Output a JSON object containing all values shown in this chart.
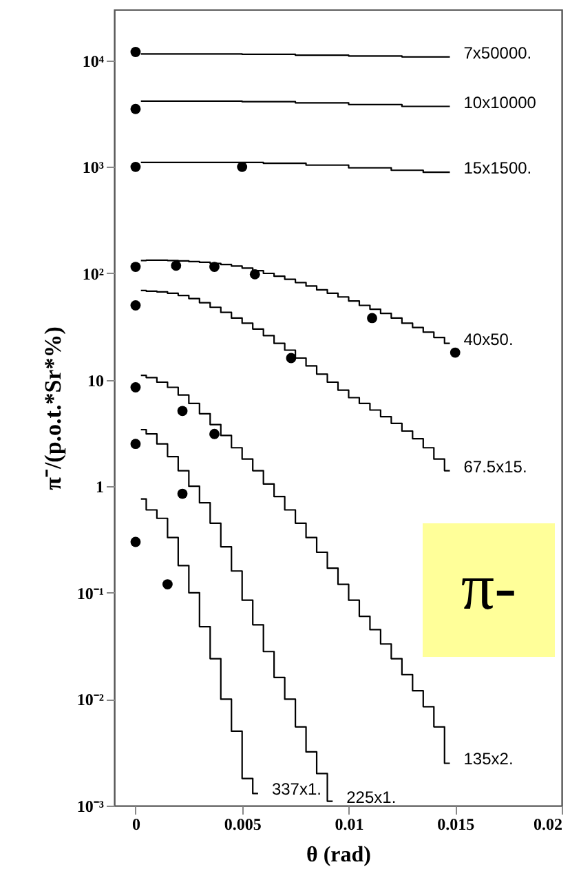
{
  "chart_data": {
    "type": "step",
    "xlabel": "θ (rad)",
    "ylabel": "π⁻/(p.o.t.*Sr*%)",
    "xlim": [
      -0.001,
      0.02
    ],
    "xticks": [
      0,
      0.005,
      0.01,
      0.015,
      0.02
    ],
    "ylim": [
      0.001,
      30000
    ],
    "yticks": [
      {
        "value": 0.001,
        "label": "10⁻³"
      },
      {
        "value": 0.01,
        "label": "10⁻²"
      },
      {
        "value": 0.1,
        "label": "10⁻¹"
      },
      1,
      10,
      {
        "value": 100,
        "label": "10²"
      },
      {
        "value": 1000,
        "label": "10³"
      },
      {
        "value": 10000,
        "label": "10⁴"
      }
    ],
    "log": true,
    "grid": false,
    "line_style": "solid",
    "annotations": [
      "π-"
    ],
    "series": [
      {
        "name": "7x50000.",
        "color": "#000000",
        "x": [
          0.00025,
          0.00075,
          0.00125,
          0.00175,
          0.00225,
          0.00275,
          0.00325,
          0.00375,
          0.00425,
          0.00475,
          0.00525,
          0.00575,
          0.00625,
          0.00675,
          0.00725,
          0.00775,
          0.00825,
          0.00875,
          0.00925,
          0.00975,
          0.01025,
          0.01075,
          0.01125,
          0.01175,
          0.01225,
          0.01275,
          0.01325,
          0.01375,
          0.01425,
          0.01475
        ],
        "values": [
          11500,
          11500,
          11500,
          11500,
          11500,
          11500,
          11500,
          11500,
          11500,
          11500,
          11400,
          11400,
          11400,
          11400,
          11400,
          11200,
          11200,
          11200,
          11200,
          11200,
          11000,
          11000,
          11000,
          11000,
          11000,
          10800,
          10800,
          10800,
          10800,
          10800
        ]
      },
      {
        "name": "10x10000",
        "color": "#000000",
        "x": [
          0.00025,
          0.00075,
          0.00125,
          0.00175,
          0.00225,
          0.00275,
          0.00325,
          0.00375,
          0.00425,
          0.00475,
          0.00525,
          0.00575,
          0.00625,
          0.00675,
          0.00725,
          0.00775,
          0.00825,
          0.00875,
          0.00925,
          0.00975,
          0.01025,
          0.01075,
          0.01125,
          0.01175,
          0.01225,
          0.01275,
          0.01325,
          0.01375,
          0.01425,
          0.01475
        ],
        "values": [
          4150,
          4150,
          4150,
          4150,
          4150,
          4150,
          4150,
          4150,
          4150,
          4150,
          4100,
          4100,
          4100,
          4100,
          4100,
          4000,
          4000,
          4000,
          4000,
          4000,
          3850,
          3850,
          3850,
          3850,
          3850,
          3700,
          3700,
          3700,
          3700,
          3700
        ]
      },
      {
        "name": "15x1500.",
        "color": "#000000",
        "x": [
          0.00025,
          0.00075,
          0.00125,
          0.00175,
          0.00225,
          0.00275,
          0.00325,
          0.00375,
          0.00425,
          0.00475,
          0.00525,
          0.00575,
          0.00625,
          0.00675,
          0.00725,
          0.00775,
          0.00825,
          0.00875,
          0.00925,
          0.00975,
          0.01025,
          0.01075,
          0.01125,
          0.01175,
          0.01225,
          0.01275,
          0.01325,
          0.01375,
          0.01425,
          0.01475
        ],
        "values": [
          1100,
          1100,
          1100,
          1100,
          1100,
          1100,
          1100,
          1100,
          1100,
          1100,
          1100,
          1100,
          1080,
          1080,
          1080,
          1080,
          1040,
          1040,
          1040,
          1040,
          980,
          980,
          980,
          980,
          930,
          930,
          930,
          890,
          890,
          890
        ]
      },
      {
        "name": "40x50.",
        "color": "#000000",
        "x": [
          0.00025,
          0.00075,
          0.00125,
          0.00175,
          0.00225,
          0.00275,
          0.00325,
          0.00375,
          0.00425,
          0.00475,
          0.00525,
          0.00575,
          0.00625,
          0.00675,
          0.00725,
          0.00775,
          0.00825,
          0.00875,
          0.00925,
          0.00975,
          0.01025,
          0.01075,
          0.01125,
          0.01175,
          0.01225,
          0.01275,
          0.01325,
          0.01375,
          0.01425,
          0.01475
        ],
        "values": [
          132,
          133,
          133,
          132,
          131,
          129,
          127,
          124,
          121,
          117,
          112,
          106,
          100,
          94,
          88,
          82,
          76,
          70,
          65,
          60,
          55,
          50,
          46,
          42,
          38,
          34,
          31,
          28,
          25,
          22
        ]
      },
      {
        "name": "67.5x15.",
        "color": "#000000",
        "x": [
          0.00025,
          0.00075,
          0.00125,
          0.00175,
          0.00225,
          0.00275,
          0.00325,
          0.00375,
          0.00425,
          0.00475,
          0.00525,
          0.00575,
          0.00625,
          0.00675,
          0.00725,
          0.00775,
          0.00825,
          0.00875,
          0.00925,
          0.00975,
          0.01025,
          0.01075,
          0.01125,
          0.01175,
          0.01225,
          0.01275,
          0.01325,
          0.01375,
          0.01425,
          0.01475
        ],
        "values": [
          69,
          68,
          67,
          65,
          62,
          58,
          53,
          48,
          43,
          38,
          34,
          30,
          26,
          22,
          19,
          16,
          13.5,
          11.3,
          9.5,
          8,
          6.8,
          6,
          5.2,
          4.5,
          3.9,
          3.3,
          2.8,
          2.3,
          1.8,
          1.4
        ]
      },
      {
        "name": "135x2.",
        "color": "#000000",
        "x": [
          0.00025,
          0.00075,
          0.00125,
          0.00175,
          0.00225,
          0.00275,
          0.00325,
          0.00375,
          0.00425,
          0.00475,
          0.00525,
          0.00575,
          0.00625,
          0.00675,
          0.00725,
          0.00775,
          0.00825,
          0.00875,
          0.00925,
          0.00975,
          0.01025,
          0.01075,
          0.01125,
          0.01175,
          0.01225,
          0.01275,
          0.01325,
          0.01375,
          0.01425,
          0.01475
        ],
        "values": [
          11,
          10.5,
          9.5,
          8.5,
          7.2,
          6,
          4.8,
          3.8,
          3,
          2.3,
          1.8,
          1.4,
          1.05,
          0.8,
          0.6,
          0.45,
          0.33,
          0.24,
          0.17,
          0.12,
          0.085,
          0.06,
          0.045,
          0.033,
          0.024,
          0.017,
          0.012,
          0.0085,
          0.0055,
          0.0025
        ]
      },
      {
        "name": "225x1.",
        "color": "#000000",
        "x": [
          0.00025,
          0.00075,
          0.00125,
          0.00175,
          0.00225,
          0.00275,
          0.00325,
          0.00375,
          0.00425,
          0.00475,
          0.00525,
          0.00575,
          0.00625,
          0.00675,
          0.00725,
          0.00775,
          0.00825,
          0.00875,
          0.00925
        ],
        "values": [
          3.4,
          3.1,
          2.5,
          1.9,
          1.4,
          1.0,
          0.7,
          0.45,
          0.27,
          0.16,
          0.085,
          0.05,
          0.028,
          0.016,
          0.01,
          0.0055,
          0.0032,
          0.002,
          0.0011
        ]
      },
      {
        "name": "337x1.",
        "color": "#000000",
        "x": [
          0.00025,
          0.00075,
          0.00125,
          0.00175,
          0.00225,
          0.00275,
          0.00325,
          0.00375,
          0.00425,
          0.00475,
          0.00525,
          0.00575
        ],
        "values": [
          0.76,
          0.6,
          0.5,
          0.33,
          0.18,
          0.1,
          0.048,
          0.024,
          0.01,
          0.005,
          0.0018,
          0.0013
        ]
      },
      {
        "type": "scatter",
        "marker": "circle",
        "color": "#000000",
        "x": [
          0
        ],
        "values": [
          12000
        ]
      },
      {
        "type": "scatter",
        "marker": "circle",
        "color": "#000000",
        "x": [
          0
        ],
        "values": [
          3500
        ]
      },
      {
        "type": "scatter",
        "marker": "circle",
        "color": "#000000",
        "x": [
          0,
          0.005
        ],
        "values": [
          1000,
          1000
        ]
      },
      {
        "type": "scatter",
        "marker": "circle",
        "color": "#000000",
        "x": [
          0,
          0.0019,
          0.0037,
          0.0056,
          0.0111,
          0.015
        ],
        "values": [
          115,
          118,
          115,
          98,
          38,
          18
        ]
      },
      {
        "type": "scatter",
        "marker": "circle",
        "color": "#000000",
        "x": [
          0,
          0.0073
        ],
        "values": [
          50,
          16
        ]
      },
      {
        "type": "scatter",
        "marker": "circle",
        "color": "#000000",
        "x": [
          0,
          0.0022,
          0.0037
        ],
        "values": [
          8.5,
          5.1,
          3.1
        ]
      },
      {
        "type": "scatter",
        "marker": "circle",
        "color": "#000000",
        "x": [
          0,
          0.0022
        ],
        "values": [
          2.5,
          0.85
        ]
      },
      {
        "type": "scatter",
        "marker": "circle",
        "color": "#000000",
        "x": [
          0,
          0.0015
        ],
        "values": [
          0.3,
          0.12
        ]
      }
    ],
    "marker": "none"
  }
}
